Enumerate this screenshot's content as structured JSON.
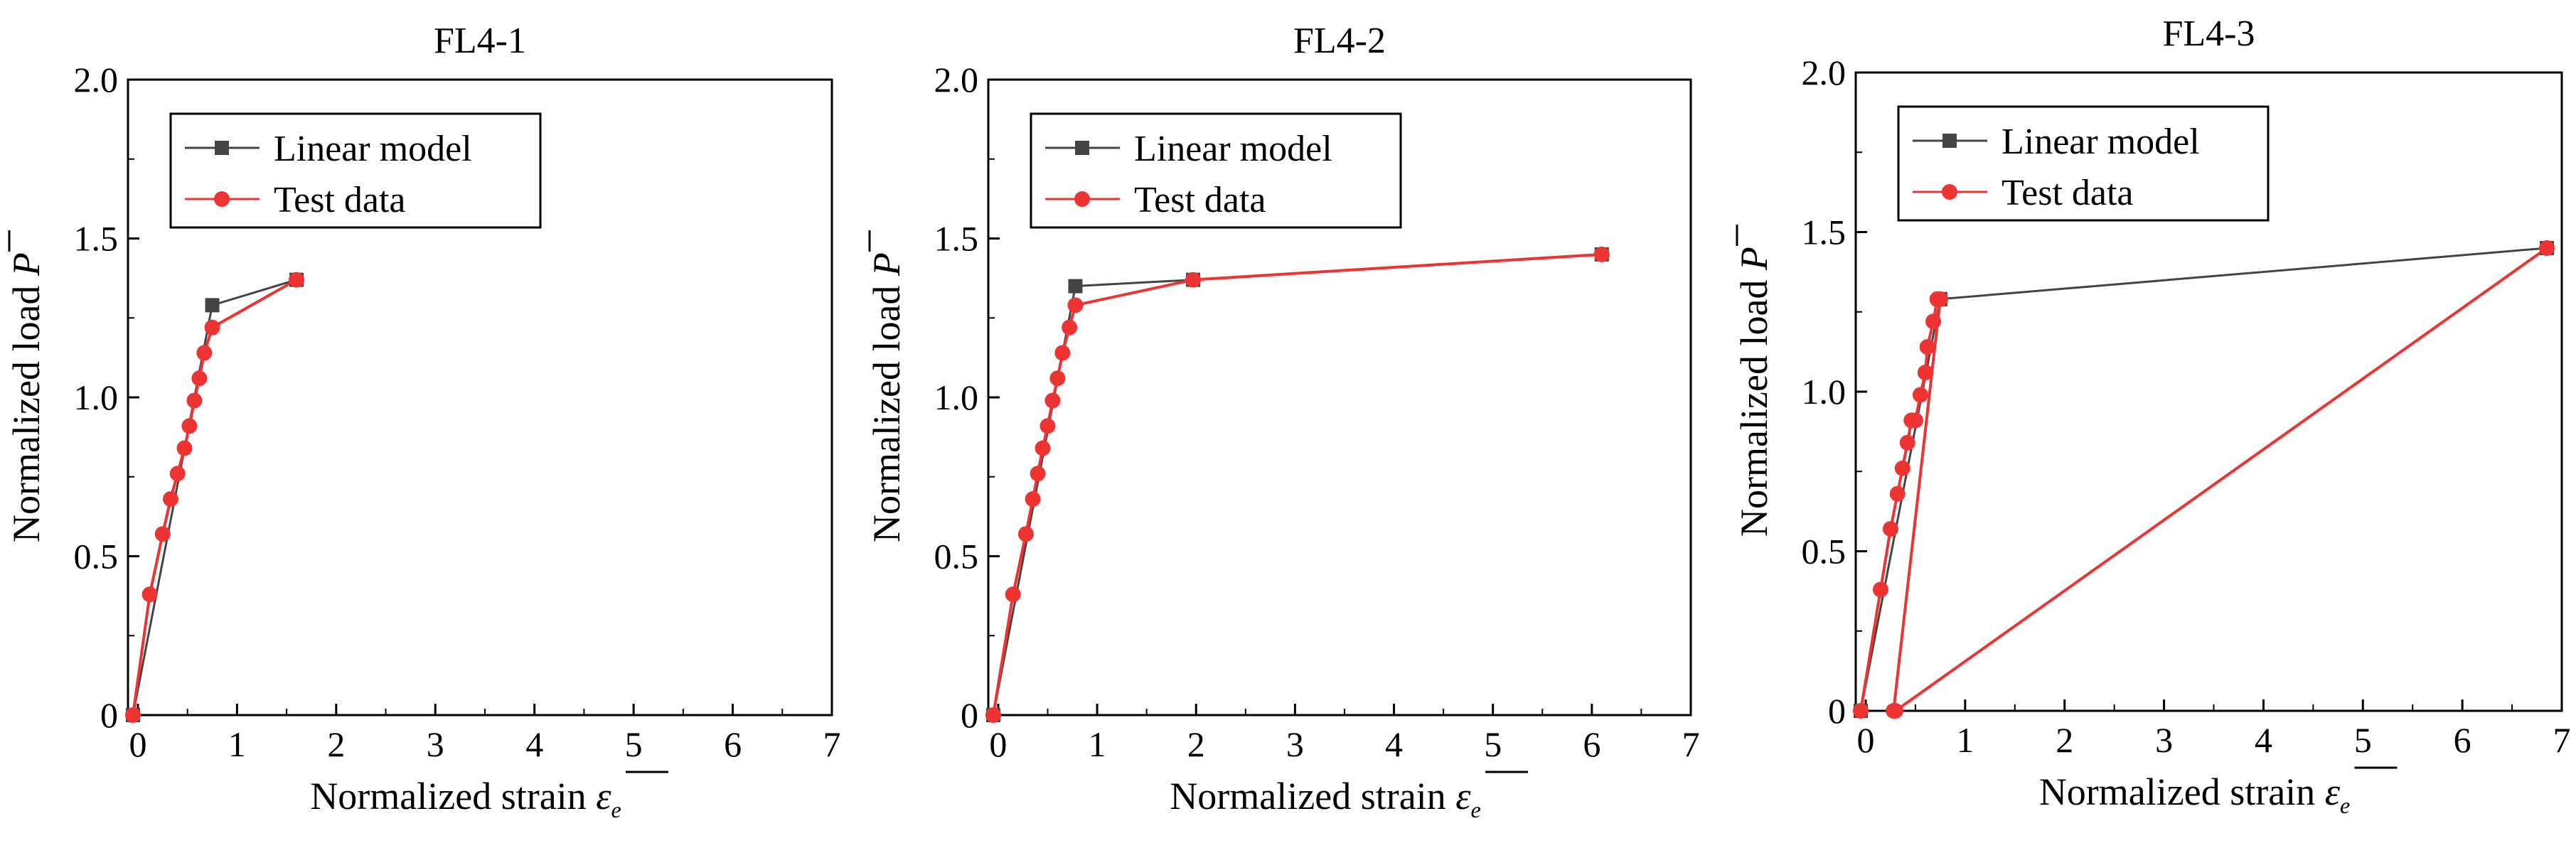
{
  "figure": {
    "x_label_prefix": "Normalized strain",
    "y_label_prefix": "Normalized load",
    "x_symbol": "ε",
    "x_subscript": "e",
    "y_symbol": "P"
  },
  "chart_data": [
    {
      "type": "line",
      "title": "FL4-1",
      "xlabel": "Normalized strain ε_e (with overbar)",
      "ylabel": "Normalized load P (with overbar)",
      "xlim": [
        -0.1,
        7
      ],
      "ylim": [
        0,
        2.0
      ],
      "x_ticks": [
        0,
        1,
        2,
        3,
        4,
        5,
        6,
        7
      ],
      "y_ticks": [
        0,
        0.5,
        1.0,
        1.5,
        2.0
      ],
      "y_tick_labels": [
        "0",
        "0.5",
        "1.0",
        "1.5",
        "2.0"
      ],
      "legend": [
        "Linear model",
        "Test data"
      ],
      "series": [
        {
          "name": "Linear model",
          "color": "#444444",
          "marker": "square",
          "x": [
            -0.05,
            0.75,
            1.6
          ],
          "y": [
            0,
            1.29,
            1.37
          ]
        },
        {
          "name": "Test data",
          "color": "#ee3333",
          "marker": "circle",
          "x": [
            -0.05,
            0.12,
            0.25,
            0.33,
            0.4,
            0.47,
            0.52,
            0.57,
            0.62,
            0.67,
            0.75,
            1.6
          ],
          "y": [
            0,
            0.38,
            0.57,
            0.68,
            0.76,
            0.84,
            0.91,
            0.99,
            1.06,
            1.14,
            1.22,
            1.37
          ]
        }
      ]
    },
    {
      "type": "line",
      "title": "FL4-2",
      "xlabel": "Normalized strain ε_e (with overbar)",
      "ylabel": "Normalized load P (with overbar)",
      "xlim": [
        -0.1,
        7
      ],
      "ylim": [
        0,
        2.0
      ],
      "x_ticks": [
        0,
        1,
        2,
        3,
        4,
        5,
        6,
        7
      ],
      "y_ticks": [
        0,
        0.5,
        1.0,
        1.5,
        2.0
      ],
      "y_tick_labels": [
        "0",
        "0.5",
        "1.0",
        "1.5",
        "2.0"
      ],
      "legend": [
        "Linear model",
        "Test data"
      ],
      "series": [
        {
          "name": "Linear model",
          "color": "#444444",
          "marker": "square",
          "x": [
            -0.05,
            0.78,
            1.97,
            6.1
          ],
          "y": [
            0,
            1.35,
            1.37,
            1.45
          ]
        },
        {
          "name": "Test data",
          "color": "#ee3333",
          "marker": "circle",
          "x": [
            -0.05,
            0.15,
            0.28,
            0.35,
            0.4,
            0.45,
            0.5,
            0.55,
            0.6,
            0.65,
            0.72,
            0.78,
            1.97,
            6.1
          ],
          "y": [
            0,
            0.38,
            0.57,
            0.68,
            0.76,
            0.84,
            0.91,
            0.99,
            1.06,
            1.14,
            1.22,
            1.29,
            1.37,
            1.45
          ]
        }
      ]
    },
    {
      "type": "line",
      "title": "FL4-3",
      "xlabel": "Normalized strain ε_e (with overbar)",
      "ylabel": "Normalized load P (with overbar)",
      "xlim": [
        -0.1,
        7
      ],
      "ylim": [
        0,
        2.0
      ],
      "x_ticks": [
        0,
        1,
        2,
        3,
        4,
        5,
        6,
        7
      ],
      "y_ticks": [
        0,
        0.5,
        1.0,
        1.5,
        2.0
      ],
      "y_tick_labels": [
        "0",
        "0.5",
        "1.0",
        "1.5",
        "2.0"
      ],
      "legend": [
        "Linear model",
        "Test data"
      ],
      "series": [
        {
          "name": "Linear model",
          "color": "#444444",
          "marker": "square",
          "x": [
            -0.05,
            0.75,
            6.85
          ],
          "y": [
            0,
            1.29,
            1.45
          ]
        },
        {
          "name": "Test data",
          "color": "#ee3333",
          "marker": "circle",
          "x": [
            -0.05,
            0.15,
            0.25,
            0.32,
            0.37,
            0.42,
            0.46,
            0.5,
            0.55,
            0.6,
            0.62,
            0.68,
            0.72,
            0.75,
            0.28,
            0.3,
            6.85
          ],
          "y": [
            0,
            0.38,
            0.57,
            0.68,
            0.76,
            0.84,
            0.91,
            0.91,
            0.99,
            1.06,
            1.14,
            1.22,
            1.29,
            1.29,
            0,
            0,
            1.45
          ]
        }
      ]
    }
  ]
}
